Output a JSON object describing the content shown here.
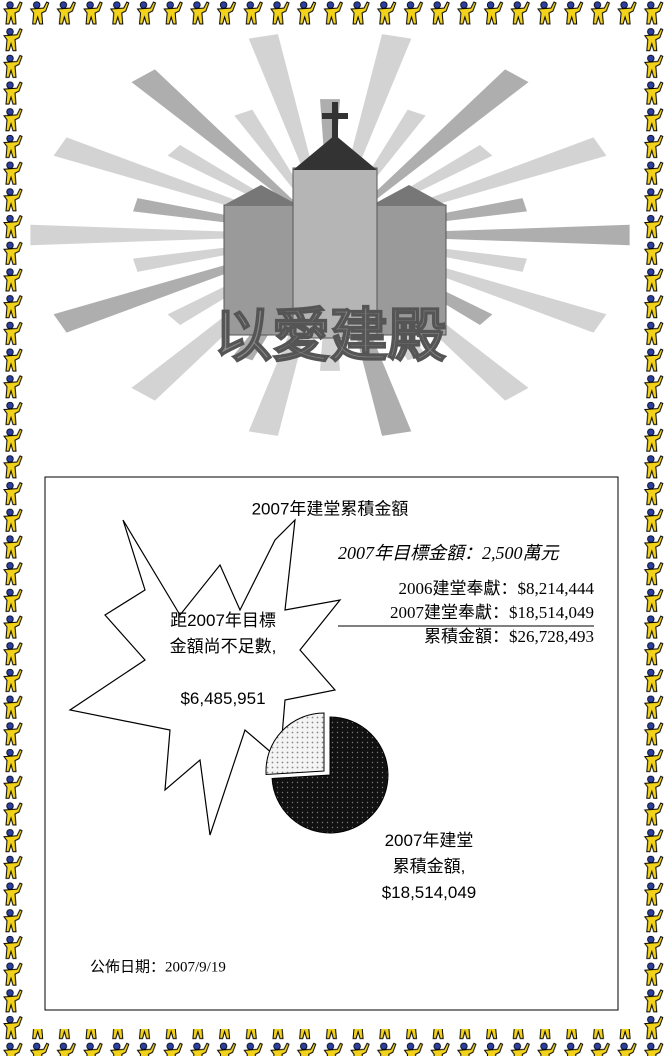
{
  "logo_text": "以愛建殿",
  "chart_data": {
    "type": "pie",
    "title": "2007年建堂累積金額",
    "categories": [
      "距2007年目標金額尚不足數,",
      "2007年建堂累積金額,"
    ],
    "values": [
      6485951,
      18514049
    ],
    "value_labels": [
      "$6,485,951",
      "$18,514,049"
    ],
    "colors": [
      "#e6e6e6",
      "#111111"
    ]
  },
  "summary": {
    "target": "2007年目標金額：2,500萬元",
    "rows": [
      [
        "2006建堂奉獻：",
        "$8,214,444"
      ],
      [
        "2007建堂奉獻：",
        "$18,514,049"
      ],
      [
        "累積金額：",
        "$26,728,493"
      ]
    ]
  },
  "date": "公佈日期：2007/9/19"
}
